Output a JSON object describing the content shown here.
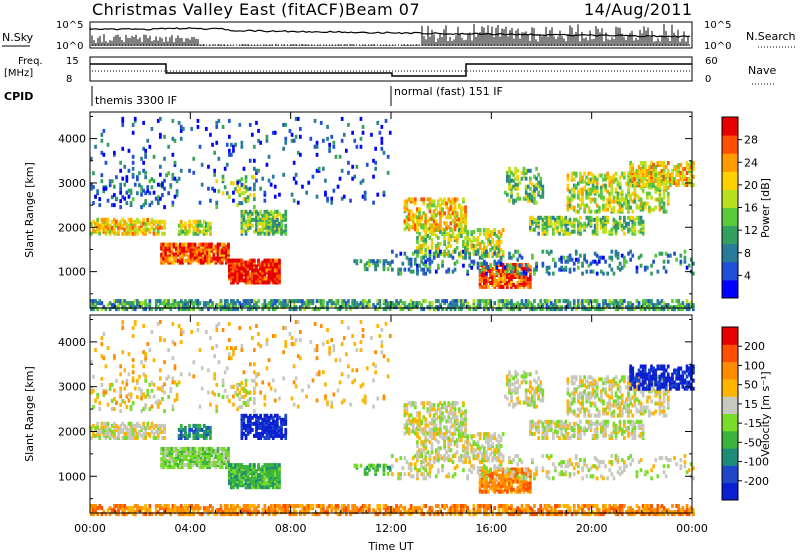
{
  "header": {
    "station": "Christmas Valley East (fitACF)",
    "beam": "Beam 07",
    "date": "14/Aug/2011"
  },
  "top_panels": {
    "nsky_label": "N.Sky",
    "nsky_max": "10^5",
    "nsky_min": "10^0",
    "nsearch_label": "N.Search",
    "freq_label": "Freq.",
    "freq_unit": "[MHz]",
    "freq_max": "15",
    "freq_min": "8",
    "nave_max": "60",
    "nave_min": "0",
    "nave_label": "Nave",
    "cpid_label": "CPID",
    "cpid_segments": [
      "themis 3300 IF",
      "normal (fast) 151 IF"
    ]
  },
  "chart_data": [
    {
      "type": "heatmap",
      "title": "",
      "xlabel": "",
      "ylabel": "Slant Range [km]",
      "xlim": [
        0,
        24
      ],
      "ylim": [
        180,
        4600
      ],
      "yticks": [
        1000,
        2000,
        3000,
        4000
      ],
      "colorbar": {
        "label": "Power [dB]",
        "ticks": [
          "4",
          "8",
          "12",
          "16",
          "20",
          "24",
          "28"
        ],
        "colors": [
          "#0000ff",
          "#1f4fd8",
          "#2a7a9a",
          "#33a060",
          "#5cc83c",
          "#b8e020",
          "#ffd000",
          "#ff9a00",
          "#ff5000",
          "#e60000"
        ]
      }
    },
    {
      "type": "heatmap",
      "title": "",
      "xlabel": "Time UT",
      "ylabel": "Slant Range [km]",
      "xlim": [
        0,
        24
      ],
      "ylim": [
        180,
        4600
      ],
      "yticks": [
        1000,
        2000,
        3000,
        4000
      ],
      "xticks": [
        "00:00",
        "04:00",
        "08:00",
        "12:00",
        "16:00",
        "20:00",
        "00:00"
      ],
      "colorbar": {
        "label": "Velocity [m s⁻¹]",
        "ticks": [
          "200",
          "100",
          "50",
          "15",
          "-15",
          "-50",
          "-100",
          "-200"
        ],
        "colors": [
          "#0a1ed2",
          "#1e46c8",
          "#1e8c78",
          "#3cb43c",
          "#78dc28",
          "#c8c8c0",
          "#ffb400",
          "#ff8c00",
          "#ff5000",
          "#e60000"
        ]
      }
    }
  ]
}
